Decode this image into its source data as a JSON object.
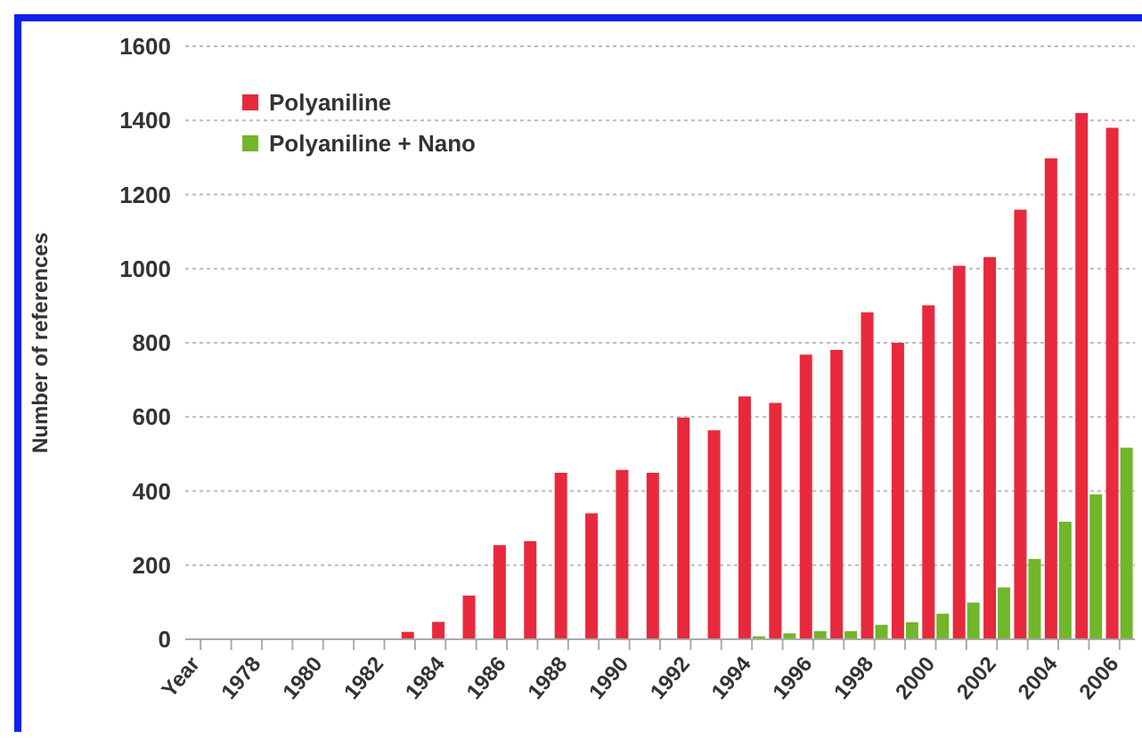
{
  "chart_data": {
    "type": "bar",
    "ylabel": "Number of references",
    "categories": [
      "Year",
      null,
      "1978",
      null,
      "1980",
      null,
      "1982",
      null,
      "1984",
      null,
      "1986",
      null,
      "1988",
      null,
      "1990",
      null,
      "1992",
      null,
      "1994",
      null,
      "1996",
      null,
      "1998",
      null,
      "2000",
      null,
      "2002",
      null,
      "2004",
      null,
      "2006"
    ],
    "series": [
      {
        "name": "Polyaniline",
        "color": "#e8293c",
        "values": [
          null,
          0,
          0,
          0,
          0,
          0,
          0,
          20,
          47,
          118,
          254,
          265,
          449,
          340,
          457,
          449,
          598,
          564,
          655,
          638,
          768,
          781,
          882,
          800,
          901,
          1008,
          1031,
          1159,
          1298,
          1420,
          1380
        ]
      },
      {
        "name": "Polyaniline + Nano",
        "color": "#72b62a",
        "values": [
          null,
          0,
          0,
          0,
          0,
          0,
          0,
          0,
          0,
          0,
          0,
          0,
          0,
          0,
          0,
          0,
          0,
          null,
          8,
          16,
          22,
          22,
          39,
          46,
          69,
          99,
          140,
          217,
          317,
          391,
          517
        ]
      }
    ],
    "ylim": [
      0,
      1600
    ],
    "yticks": [
      0,
      200,
      400,
      600,
      800,
      1000,
      1200,
      1400,
      1600
    ],
    "grid": "y",
    "legend": "top left"
  }
}
